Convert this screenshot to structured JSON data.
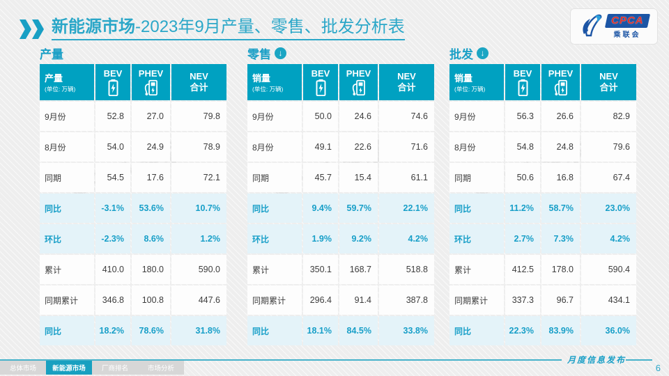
{
  "slide": {
    "title": {
      "highlight": "新能源市场",
      "rest": "-2023年9月产量、零售、批发分析表"
    },
    "logo": {
      "acronym": "CPCA",
      "org": "乘联会"
    },
    "watermark": "CPCA 乘联会"
  },
  "icons": {
    "down_arrow_glyph": "↓"
  },
  "columns": {
    "bev": "BEV",
    "phev": "PHEV",
    "nev_line1": "NEV",
    "nev_line2": "合计"
  },
  "tables": [
    {
      "section": "产量",
      "arrow": false,
      "measure": "产量",
      "unit": "(单位: 万辆)",
      "rows": [
        {
          "label": "9月份",
          "values": [
            "52.8",
            "27.0",
            "79.8"
          ],
          "highlight": false
        },
        {
          "label": "8月份",
          "values": [
            "54.0",
            "24.9",
            "78.9"
          ],
          "highlight": false
        },
        {
          "label": "同期",
          "values": [
            "54.5",
            "17.6",
            "72.1"
          ],
          "highlight": false
        },
        {
          "label": "同比",
          "values": [
            "-3.1%",
            "53.6%",
            "10.7%"
          ],
          "highlight": true
        },
        {
          "label": "环比",
          "values": [
            "-2.3%",
            "8.6%",
            "1.2%"
          ],
          "highlight": true
        },
        {
          "label": "累计",
          "values": [
            "410.0",
            "180.0",
            "590.0"
          ],
          "highlight": false
        },
        {
          "label": "同期累计",
          "values": [
            "346.8",
            "100.8",
            "447.6"
          ],
          "highlight": false
        },
        {
          "label": "同比",
          "values": [
            "18.2%",
            "78.6%",
            "31.8%"
          ],
          "highlight": true
        }
      ]
    },
    {
      "section": "零售",
      "arrow": true,
      "measure": "销量",
      "unit": "(单位: 万辆)",
      "rows": [
        {
          "label": "9月份",
          "values": [
            "50.0",
            "24.6",
            "74.6"
          ],
          "highlight": false
        },
        {
          "label": "8月份",
          "values": [
            "49.1",
            "22.6",
            "71.6"
          ],
          "highlight": false
        },
        {
          "label": "同期",
          "values": [
            "45.7",
            "15.4",
            "61.1"
          ],
          "highlight": false
        },
        {
          "label": "同比",
          "values": [
            "9.4%",
            "59.7%",
            "22.1%"
          ],
          "highlight": true
        },
        {
          "label": "环比",
          "values": [
            "1.9%",
            "9.2%",
            "4.2%"
          ],
          "highlight": true
        },
        {
          "label": "累计",
          "values": [
            "350.1",
            "168.7",
            "518.8"
          ],
          "highlight": false
        },
        {
          "label": "同期累计",
          "values": [
            "296.4",
            "91.4",
            "387.8"
          ],
          "highlight": false
        },
        {
          "label": "同比",
          "values": [
            "18.1%",
            "84.5%",
            "33.8%"
          ],
          "highlight": true
        }
      ]
    },
    {
      "section": "批发",
      "arrow": true,
      "measure": "销量",
      "unit": "(单位: 万辆)",
      "rows": [
        {
          "label": "9月份",
          "values": [
            "56.3",
            "26.6",
            "82.9"
          ],
          "highlight": false
        },
        {
          "label": "8月份",
          "values": [
            "54.8",
            "24.8",
            "79.6"
          ],
          "highlight": false
        },
        {
          "label": "同期",
          "values": [
            "50.6",
            "16.8",
            "67.4"
          ],
          "highlight": false
        },
        {
          "label": "同比",
          "values": [
            "11.2%",
            "58.7%",
            "23.0%"
          ],
          "highlight": true
        },
        {
          "label": "环比",
          "values": [
            "2.7%",
            "7.3%",
            "4.2%"
          ],
          "highlight": true
        },
        {
          "label": "累计",
          "values": [
            "412.5",
            "178.0",
            "590.4"
          ],
          "highlight": false
        },
        {
          "label": "同期累计",
          "values": [
            "337.3",
            "96.7",
            "434.1"
          ],
          "highlight": false
        },
        {
          "label": "同比",
          "values": [
            "22.3%",
            "83.9%",
            "36.0%"
          ],
          "highlight": true
        }
      ]
    }
  ],
  "footer": {
    "tabs": [
      {
        "label": "总体市场",
        "active": false
      },
      {
        "label": "新能源市场",
        "active": true
      },
      {
        "label": "厂商排名",
        "active": false
      },
      {
        "label": "市场分析",
        "active": false
      }
    ],
    "caption": "月度信息发布",
    "page": "6"
  },
  "colors": {
    "header_teal": "#00a1c1",
    "title_teal": "#2ba7c8",
    "highlight_bg": "#e4f3f9",
    "highlight_text": "#189fc8",
    "tab_active": "#18a0c0",
    "logo_blue": "#1c55a5",
    "logo_red": "#e0322a"
  }
}
